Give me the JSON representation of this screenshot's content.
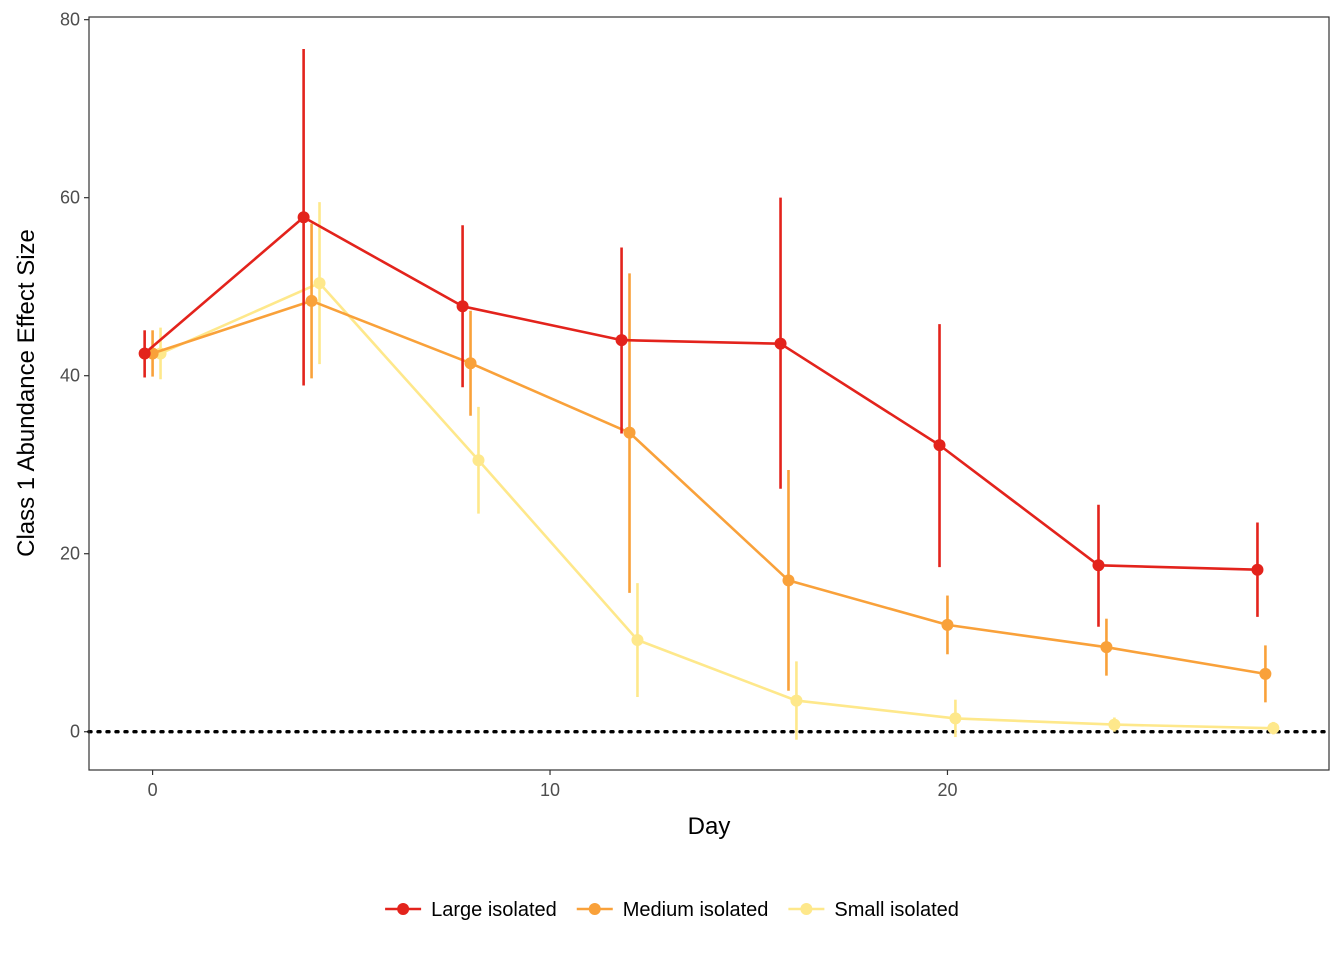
{
  "chart_data": {
    "type": "line",
    "title": "",
    "xlabel": "Day",
    "ylabel": "Class 1 Abundance Effect Size",
    "xlim": [
      -1.6,
      29.6
    ],
    "ylim": [
      -4.3,
      80.3
    ],
    "x_ticks": [
      0,
      10,
      20
    ],
    "y_ticks": [
      0,
      20,
      40,
      60,
      80
    ],
    "x_tick_labels": [
      "0",
      "10",
      "20"
    ],
    "y_tick_labels": [
      "0",
      "20",
      "40",
      "60",
      "80"
    ],
    "grid": false,
    "reference_line": {
      "y": 0,
      "style": "dotted"
    },
    "legend_position": "bottom",
    "series": [
      {
        "name": "Large isolated",
        "color": "#e3231c",
        "x": [
          -0.2,
          3.8,
          7.8,
          11.8,
          15.8,
          19.8,
          23.8,
          27.8
        ],
        "y": [
          42.5,
          57.8,
          47.8,
          44.0,
          43.6,
          32.2,
          18.7,
          18.2
        ],
        "lower": [
          39.8,
          38.9,
          38.7,
          33.5,
          27.3,
          18.5,
          11.8,
          12.9
        ],
        "upper": [
          45.1,
          76.7,
          56.9,
          54.4,
          60.0,
          45.8,
          25.5,
          23.5
        ]
      },
      {
        "name": "Medium isolated",
        "color": "#f9a13a",
        "x": [
          0.0,
          4.0,
          8.0,
          12.0,
          16.0,
          20.0,
          24.0,
          28.0
        ],
        "y": [
          42.5,
          48.4,
          41.4,
          33.6,
          17.0,
          12.0,
          9.5,
          6.5
        ],
        "lower": [
          39.9,
          39.7,
          35.5,
          15.6,
          4.6,
          8.7,
          6.3,
          3.3
        ],
        "upper": [
          45.1,
          57.1,
          47.3,
          51.5,
          29.4,
          15.3,
          12.7,
          9.7
        ]
      },
      {
        "name": "Small isolated",
        "color": "#fee88b",
        "x": [
          0.2,
          4.2,
          8.2,
          12.2,
          16.2,
          20.2,
          24.2,
          28.2
        ],
        "y": [
          42.5,
          50.4,
          30.5,
          10.3,
          3.5,
          1.5,
          0.8,
          0.4
        ],
        "lower": [
          39.6,
          41.3,
          24.5,
          3.9,
          -0.9,
          -0.6,
          0.0,
          -0.3
        ],
        "upper": [
          45.4,
          59.5,
          36.5,
          16.7,
          7.9,
          3.6,
          1.6,
          1.1
        ]
      }
    ]
  }
}
